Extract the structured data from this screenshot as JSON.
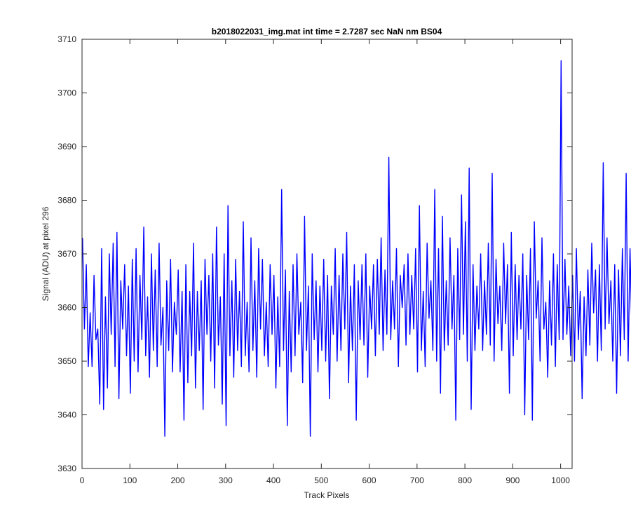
{
  "chart_data": {
    "type": "line",
    "title": "b2018022031_img.mat int time = 2.7287 sec  NaN nm BS04",
    "xlabel": "Track Pixels",
    "ylabel": "Signal (ADU) at pixel 296",
    "xlim": [
      0,
      1024
    ],
    "ylim": [
      3630,
      3710
    ],
    "xticks": [
      0,
      100,
      200,
      300,
      400,
      500,
      600,
      700,
      800,
      900,
      1000
    ],
    "yticks": [
      3630,
      3640,
      3650,
      3660,
      3670,
      3680,
      3690,
      3700,
      3710
    ],
    "grid": false,
    "legend": "none",
    "series": [
      {
        "color": "#0000ff",
        "sample_step": 4,
        "x_start": 1,
        "y": [
          3673,
          3656,
          3668,
          3649,
          3659,
          3649,
          3666,
          3654,
          3656,
          3642,
          3671,
          3641,
          3662,
          3645,
          3670,
          3655,
          3672,
          3649,
          3674,
          3643,
          3665,
          3656,
          3668,
          3651,
          3664,
          3644,
          3669,
          3650,
          3671,
          3648,
          3666,
          3654,
          3675,
          3651,
          3662,
          3647,
          3670,
          3652,
          3667,
          3649,
          3672,
          3653,
          3660,
          3636,
          3665,
          3652,
          3669,
          3648,
          3661,
          3655,
          3667,
          3648,
          3663,
          3639,
          3668,
          3646,
          3663,
          3651,
          3672,
          3645,
          3663,
          3652,
          3665,
          3641,
          3669,
          3655,
          3666,
          3650,
          3670,
          3645,
          3675,
          3653,
          3662,
          3642,
          3670,
          3638,
          3679,
          3651,
          3665,
          3647,
          3669,
          3652,
          3663,
          3649,
          3676,
          3651,
          3661,
          3648,
          3673,
          3652,
          3665,
          3647,
          3671,
          3656,
          3669,
          3651,
          3661,
          3649,
          3668,
          3655,
          3666,
          3645,
          3662,
          3649,
          3682,
          3652,
          3667,
          3638,
          3663,
          3648,
          3668,
          3651,
          3670,
          3655,
          3661,
          3646,
          3677,
          3652,
          3664,
          3636,
          3670,
          3654,
          3665,
          3648,
          3664,
          3652,
          3669,
          3650,
          3666,
          3643,
          3664,
          3655,
          3671,
          3650,
          3666,
          3652,
          3670,
          3656,
          3674,
          3646,
          3664,
          3652,
          3668,
          3639,
          3665,
          3654,
          3668,
          3653,
          3670,
          3647,
          3664,
          3656,
          3668,
          3651,
          3669,
          3655,
          3673,
          3652,
          3667,
          3655,
          3688,
          3654,
          3665,
          3656,
          3671,
          3649,
          3666,
          3660,
          3668,
          3653,
          3670,
          3655,
          3666,
          3656,
          3671,
          3648,
          3679,
          3652,
          3663,
          3649,
          3672,
          3658,
          3665,
          3652,
          3682,
          3650,
          3671,
          3644,
          3677,
          3652,
          3665,
          3653,
          3673,
          3656,
          3666,
          3639,
          3671,
          3654,
          3681,
          3655,
          3676,
          3650,
          3686,
          3641,
          3668,
          3652,
          3664,
          3656,
          3670,
          3652,
          3665,
          3655,
          3672,
          3653,
          3685,
          3650,
          3669,
          3657,
          3664,
          3652,
          3672,
          3657,
          3668,
          3644,
          3674,
          3651,
          3668,
          3654,
          3666,
          3656,
          3670,
          3640,
          3666,
          3654,
          3671,
          3639,
          3676,
          3658,
          3665,
          3650,
          3673,
          3656,
          3661,
          3647,
          3665,
          3653,
          3670,
          3649,
          3668,
          3654,
          3706,
          3654,
          3669,
          3655,
          3664,
          3651,
          3666,
          3650,
          3671,
          3654,
          3663,
          3643,
          3662,
          3651,
          3667,
          3653,
          3672,
          3659,
          3667,
          3650,
          3668,
          3652,
          3687,
          3656,
          3673,
          3657,
          3665,
          3650,
          3668,
          3644,
          3667,
          3651,
          3671,
          3654,
          3685,
          3650,
          3671,
          3655,
          3664,
          3649,
          3679,
          3653,
          3671,
          3657,
          3668,
          3651,
          3672,
          3655,
          3671,
          3650,
          3680,
          3646
        ]
      }
    ]
  }
}
